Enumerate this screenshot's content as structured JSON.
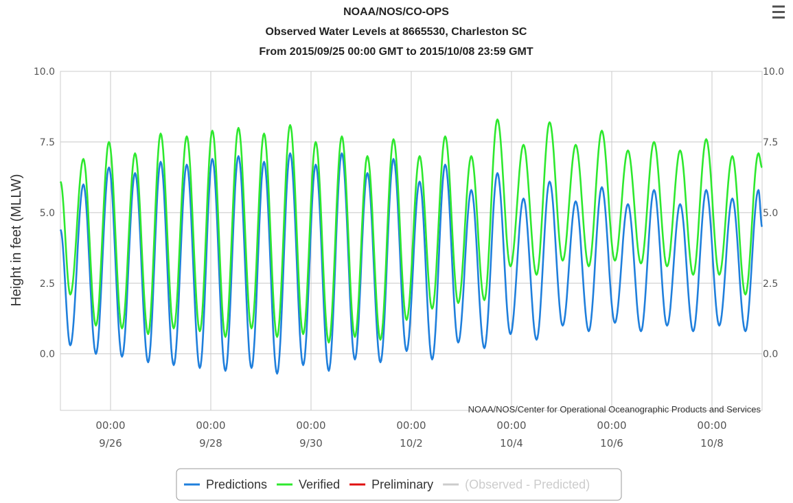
{
  "chart_data": {
    "type": "line",
    "title": "NOAA/NOS/CO-OPS",
    "subtitle_lines": [
      "Observed Water Levels at 8665530, Charleston SC",
      "From 2015/09/25 00:00 GMT to 2015/10/08 23:59 GMT"
    ],
    "ylabel": "Height in feet (MLLW)",
    "xlabel": "",
    "ylim": [
      -2.0,
      10.0
    ],
    "y_ticks": [
      0.0,
      2.5,
      5.0,
      7.5,
      10.0
    ],
    "y_tick_labels": [
      "0.0",
      "2.5",
      "5.0",
      "7.5",
      "10.0"
    ],
    "x_range": [
      "2015-09-25 00:00",
      "2015-10-09 00:00"
    ],
    "x_ticks": [
      "2015-09-26 00:00",
      "2015-09-28 00:00",
      "2015-09-30 00:00",
      "2015-10-02 00:00",
      "2015-10-04 00:00",
      "2015-10-06 00:00",
      "2015-10-08 00:00"
    ],
    "x_tick_labels": [
      [
        "00:00",
        "9/26"
      ],
      [
        "00:00",
        "9/28"
      ],
      [
        "00:00",
        "9/30"
      ],
      [
        "00:00",
        "10/2"
      ],
      [
        "00:00",
        "10/4"
      ],
      [
        "00:00",
        "10/6"
      ],
      [
        "00:00",
        "10/8"
      ]
    ],
    "grid": true,
    "legend_position": "bottom-center",
    "credits": "NOAA/NOS/Center for Operational Oceanographic Products and Services",
    "series": [
      {
        "name": "Predictions",
        "color": "#1f7fdc",
        "values_at": "tide extremes (time, height ft)",
        "points": [
          [
            "2015-09-25 00:00",
            4.4
          ],
          [
            "2015-09-25 04:45",
            0.3
          ],
          [
            "2015-09-25 11:00",
            6.0
          ],
          [
            "2015-09-25 17:00",
            0.0
          ],
          [
            "2015-09-25 23:15",
            6.6
          ],
          [
            "2015-09-26 05:30",
            -0.1
          ],
          [
            "2015-09-26 11:45",
            6.4
          ],
          [
            "2015-09-26 18:00",
            -0.3
          ],
          [
            "2015-09-27 00:00",
            6.8
          ],
          [
            "2015-09-27 06:15",
            -0.4
          ],
          [
            "2015-09-27 12:30",
            6.7
          ],
          [
            "2015-09-27 18:45",
            -0.5
          ],
          [
            "2015-09-28 00:45",
            6.9
          ],
          [
            "2015-09-28 07:00",
            -0.6
          ],
          [
            "2015-09-28 13:15",
            7.0
          ],
          [
            "2015-09-28 19:30",
            -0.5
          ],
          [
            "2015-09-29 01:30",
            6.8
          ],
          [
            "2015-09-29 07:45",
            -0.7
          ],
          [
            "2015-09-29 14:00",
            7.1
          ],
          [
            "2015-09-29 20:15",
            -0.4
          ],
          [
            "2015-09-30 02:15",
            6.7
          ],
          [
            "2015-09-30 08:30",
            -0.6
          ],
          [
            "2015-09-30 14:45",
            7.1
          ],
          [
            "2015-09-30 21:00",
            -0.2
          ],
          [
            "2015-10-01 03:00",
            6.4
          ],
          [
            "2015-10-01 09:15",
            -0.3
          ],
          [
            "2015-10-01 15:30",
            6.9
          ],
          [
            "2015-10-01 21:45",
            0.1
          ],
          [
            "2015-10-02 04:00",
            6.1
          ],
          [
            "2015-10-02 10:00",
            -0.2
          ],
          [
            "2015-10-02 16:15",
            6.7
          ],
          [
            "2015-10-02 22:30",
            0.4
          ],
          [
            "2015-10-03 04:45",
            5.8
          ],
          [
            "2015-10-03 11:00",
            0.2
          ],
          [
            "2015-10-03 17:15",
            6.4
          ],
          [
            "2015-10-03 23:30",
            0.7
          ],
          [
            "2015-10-04 05:45",
            5.5
          ],
          [
            "2015-10-04 12:00",
            0.5
          ],
          [
            "2015-10-04 18:15",
            6.1
          ],
          [
            "2015-10-05 00:30",
            1.0
          ],
          [
            "2015-10-05 06:45",
            5.4
          ],
          [
            "2015-10-05 13:00",
            0.8
          ],
          [
            "2015-10-05 19:15",
            5.9
          ],
          [
            "2015-10-06 01:30",
            1.1
          ],
          [
            "2015-10-06 07:45",
            5.3
          ],
          [
            "2015-10-06 14:00",
            0.8
          ],
          [
            "2015-10-06 20:15",
            5.8
          ],
          [
            "2015-10-07 02:30",
            1.0
          ],
          [
            "2015-10-07 08:45",
            5.3
          ],
          [
            "2015-10-07 15:00",
            0.8
          ],
          [
            "2015-10-07 21:15",
            5.8
          ],
          [
            "2015-10-08 03:30",
            1.0
          ],
          [
            "2015-10-08 09:45",
            5.5
          ],
          [
            "2015-10-08 16:00",
            0.8
          ],
          [
            "2015-10-08 22:15",
            5.8
          ],
          [
            "2015-10-09 00:00",
            4.5
          ]
        ]
      },
      {
        "name": "Verified",
        "color": "#2ee82e",
        "values_at": "tide extremes (time, height ft)",
        "points": [
          [
            "2015-09-25 00:00",
            6.1
          ],
          [
            "2015-09-25 04:45",
            2.1
          ],
          [
            "2015-09-25 11:00",
            6.9
          ],
          [
            "2015-09-25 17:00",
            1.0
          ],
          [
            "2015-09-25 23:15",
            7.5
          ],
          [
            "2015-09-26 05:30",
            0.9
          ],
          [
            "2015-09-26 11:45",
            7.1
          ],
          [
            "2015-09-26 18:00",
            0.7
          ],
          [
            "2015-09-27 00:00",
            7.8
          ],
          [
            "2015-09-27 06:15",
            0.9
          ],
          [
            "2015-09-27 12:30",
            7.7
          ],
          [
            "2015-09-27 18:45",
            0.8
          ],
          [
            "2015-09-28 00:45",
            7.9
          ],
          [
            "2015-09-28 07:00",
            0.6
          ],
          [
            "2015-09-28 13:15",
            8.0
          ],
          [
            "2015-09-28 19:30",
            0.9
          ],
          [
            "2015-09-29 01:30",
            7.8
          ],
          [
            "2015-09-29 07:45",
            0.6
          ],
          [
            "2015-09-29 14:00",
            8.1
          ],
          [
            "2015-09-29 20:15",
            0.7
          ],
          [
            "2015-09-30 02:15",
            7.5
          ],
          [
            "2015-09-30 08:30",
            0.4
          ],
          [
            "2015-09-30 14:45",
            7.7
          ],
          [
            "2015-09-30 21:00",
            0.6
          ],
          [
            "2015-10-01 03:00",
            7.0
          ],
          [
            "2015-10-01 09:15",
            0.5
          ],
          [
            "2015-10-01 15:30",
            7.6
          ],
          [
            "2015-10-01 21:45",
            1.2
          ],
          [
            "2015-10-02 04:00",
            7.0
          ],
          [
            "2015-10-02 10:00",
            1.6
          ],
          [
            "2015-10-02 16:15",
            7.7
          ],
          [
            "2015-10-02 22:30",
            1.8
          ],
          [
            "2015-10-03 04:45",
            7.0
          ],
          [
            "2015-10-03 11:00",
            1.9
          ],
          [
            "2015-10-03 17:15",
            8.3
          ],
          [
            "2015-10-03 23:30",
            3.1
          ],
          [
            "2015-10-04 05:45",
            7.4
          ],
          [
            "2015-10-04 12:00",
            2.8
          ],
          [
            "2015-10-04 18:15",
            8.2
          ],
          [
            "2015-10-05 00:30",
            3.3
          ],
          [
            "2015-10-05 06:45",
            7.4
          ],
          [
            "2015-10-05 13:00",
            3.1
          ],
          [
            "2015-10-05 19:15",
            7.9
          ],
          [
            "2015-10-06 01:30",
            3.3
          ],
          [
            "2015-10-06 07:45",
            7.2
          ],
          [
            "2015-10-06 14:00",
            3.2
          ],
          [
            "2015-10-06 20:15",
            7.5
          ],
          [
            "2015-10-07 02:30",
            3.1
          ],
          [
            "2015-10-07 08:45",
            7.2
          ],
          [
            "2015-10-07 15:00",
            2.8
          ],
          [
            "2015-10-07 21:15",
            7.6
          ],
          [
            "2015-10-08 03:30",
            2.8
          ],
          [
            "2015-10-08 09:45",
            7.0
          ],
          [
            "2015-10-08 16:00",
            2.1
          ],
          [
            "2015-10-08 22:15",
            7.1
          ],
          [
            "2015-10-09 00:00",
            6.6
          ]
        ]
      }
    ],
    "legend": [
      {
        "name": "Predictions",
        "color": "#1f7fdc",
        "visible": true
      },
      {
        "name": "Verified",
        "color": "#2ee82e",
        "visible": true
      },
      {
        "name": "Preliminary",
        "color": "#e01010",
        "visible": true
      },
      {
        "name": "(Observed - Predicted)",
        "color": "#cccccc",
        "visible": false
      }
    ]
  },
  "ui": {
    "menu_icon": "hamburger-menu-icon"
  }
}
